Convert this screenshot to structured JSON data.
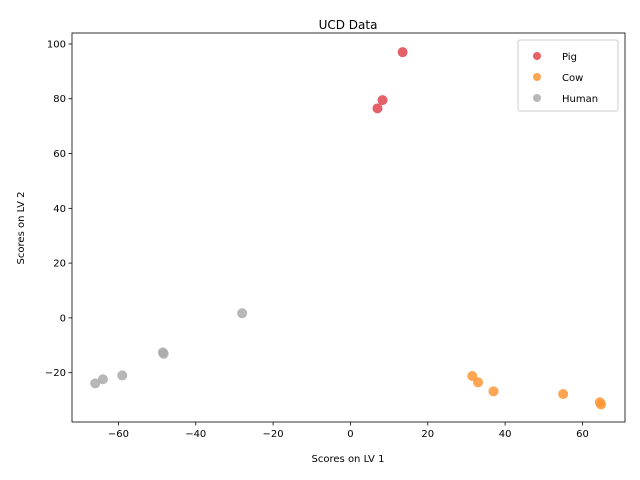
{
  "chart_data": {
    "type": "scatter",
    "title": "UCD Data",
    "xlabel": "Scores on LV 1",
    "ylabel": "Scores on LV 2",
    "xlim": [
      -72,
      71
    ],
    "ylim": [
      -38,
      104
    ],
    "xticks": [
      -60,
      -40,
      -20,
      0,
      20,
      40,
      60
    ],
    "yticks": [
      -20,
      0,
      20,
      40,
      60,
      80,
      100
    ],
    "grid": false,
    "legend_position": "top-right",
    "series": [
      {
        "name": "Pig",
        "color": "#e0454f",
        "points": [
          [
            13.5,
            97
          ],
          [
            8.3,
            79.5
          ],
          [
            7.0,
            76.5
          ]
        ]
      },
      {
        "name": "Cow",
        "color": "#fd9535",
        "points": [
          [
            31.5,
            -21.2
          ],
          [
            33.0,
            -23.5
          ],
          [
            37.0,
            -26.8
          ],
          [
            55.0,
            -27.8
          ],
          [
            64.5,
            -30.8
          ],
          [
            64.8,
            -31.6
          ]
        ]
      },
      {
        "name": "Human",
        "color": "#aaaaaa",
        "points": [
          [
            -28.0,
            1.7
          ],
          [
            -48.5,
            -12.6
          ],
          [
            -48.3,
            -13.1
          ],
          [
            -59.0,
            -21.0
          ],
          [
            -64.0,
            -22.4
          ],
          [
            -66.0,
            -23.9
          ]
        ]
      }
    ]
  }
}
